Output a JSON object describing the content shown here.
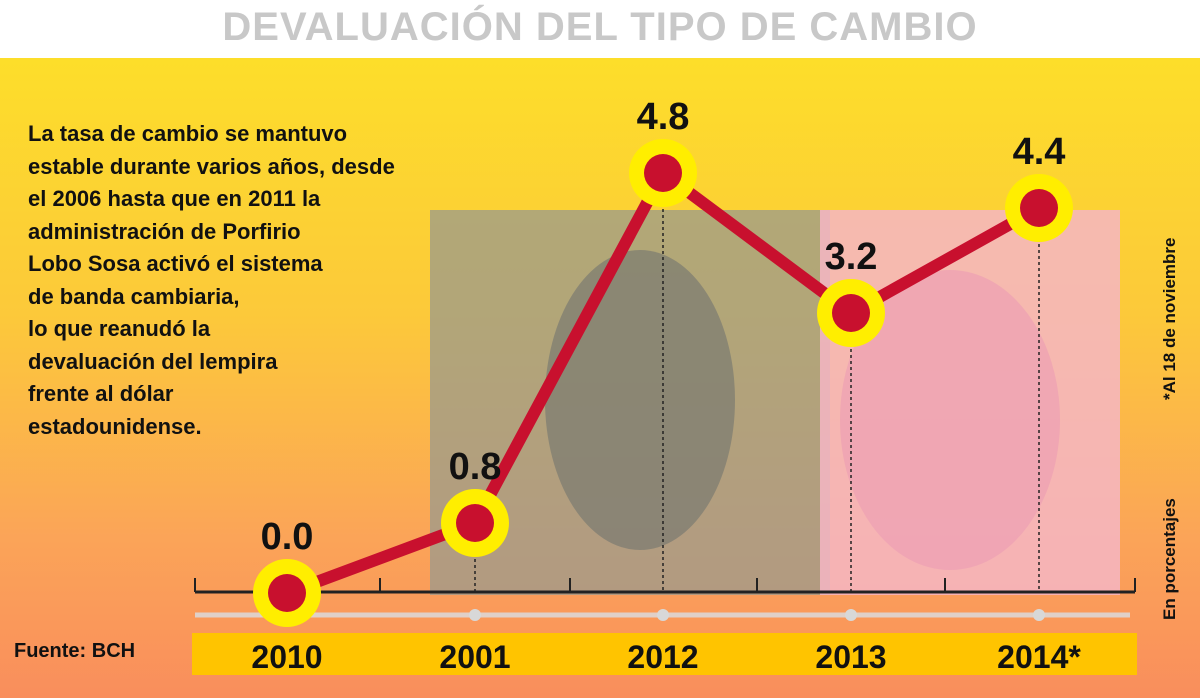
{
  "title": "DEVALUACIÓN DEL TIPO DE CAMBIO",
  "description": "La tasa de cambio se mantuvo\nestable durante varios años, desde\nel 2006 hasta que en 2011 la\nadministración de Porfirio\nLobo Sosa activó el sistema\nde banda cambiaria,\nlo que reanudó la\ndevaluación del lempira\nfrente al dólar\nestadounidense.",
  "source": "Fuente: BCH",
  "notes": {
    "unit": "En porcentajes",
    "footnote": "*Al 18 de noviembre"
  },
  "colors": {
    "line": "#c8102e",
    "marker_ring": "#ffee00",
    "marker_center": "#c8102e",
    "axis_band": "#ffc400"
  },
  "chart_data": {
    "type": "line",
    "title": "DEVALUACIÓN DEL TIPO DE CAMBIO",
    "categories": [
      "2010",
      "2001",
      "2012",
      "2013",
      "2014*"
    ],
    "values": [
      0.0,
      0.8,
      4.8,
      3.2,
      4.4
    ],
    "data_labels": [
      "0.0",
      "0.8",
      "4.8",
      "3.2",
      "4.4"
    ],
    "ylabel": "En porcentajes",
    "ylim": [
      0,
      4.8
    ],
    "grid": false
  }
}
